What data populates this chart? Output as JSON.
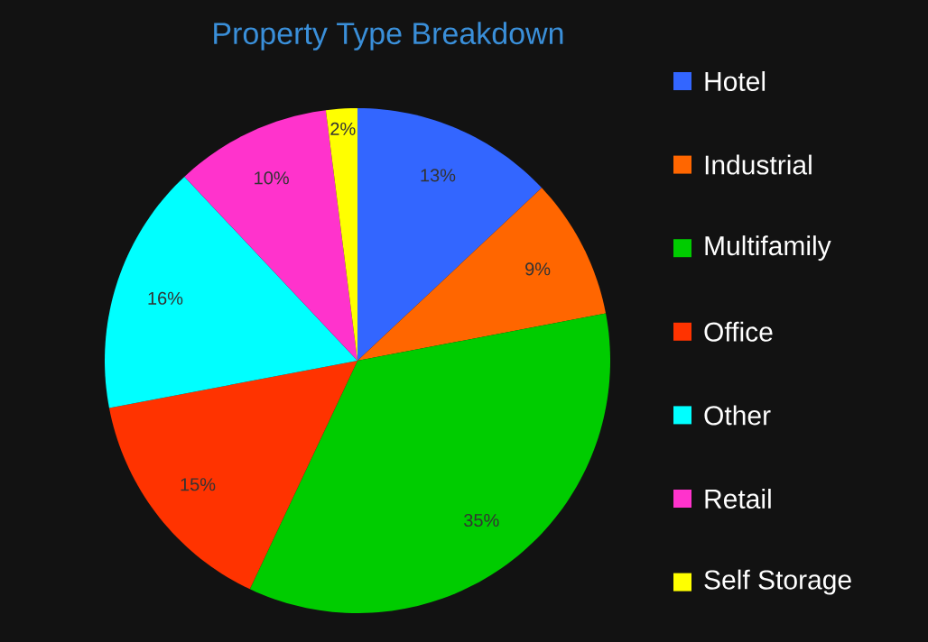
{
  "chart_data": {
    "type": "pie",
    "title": "Property Type Breakdown",
    "categories": [
      "Hotel",
      "Industrial",
      "Multifamily",
      "Office",
      "Other",
      "Retail",
      "Self Storage"
    ],
    "values": [
      13,
      9,
      35,
      15,
      16,
      10,
      2
    ],
    "value_labels": [
      "13%",
      "9%",
      "35%",
      "15%",
      "16%",
      "10%",
      "2%"
    ],
    "colors": [
      "#3366ff",
      "#ff6600",
      "#00cc00",
      "#ff3300",
      "#00ffff",
      "#ff33cc",
      "#ffff00"
    ],
    "legend": "right"
  }
}
